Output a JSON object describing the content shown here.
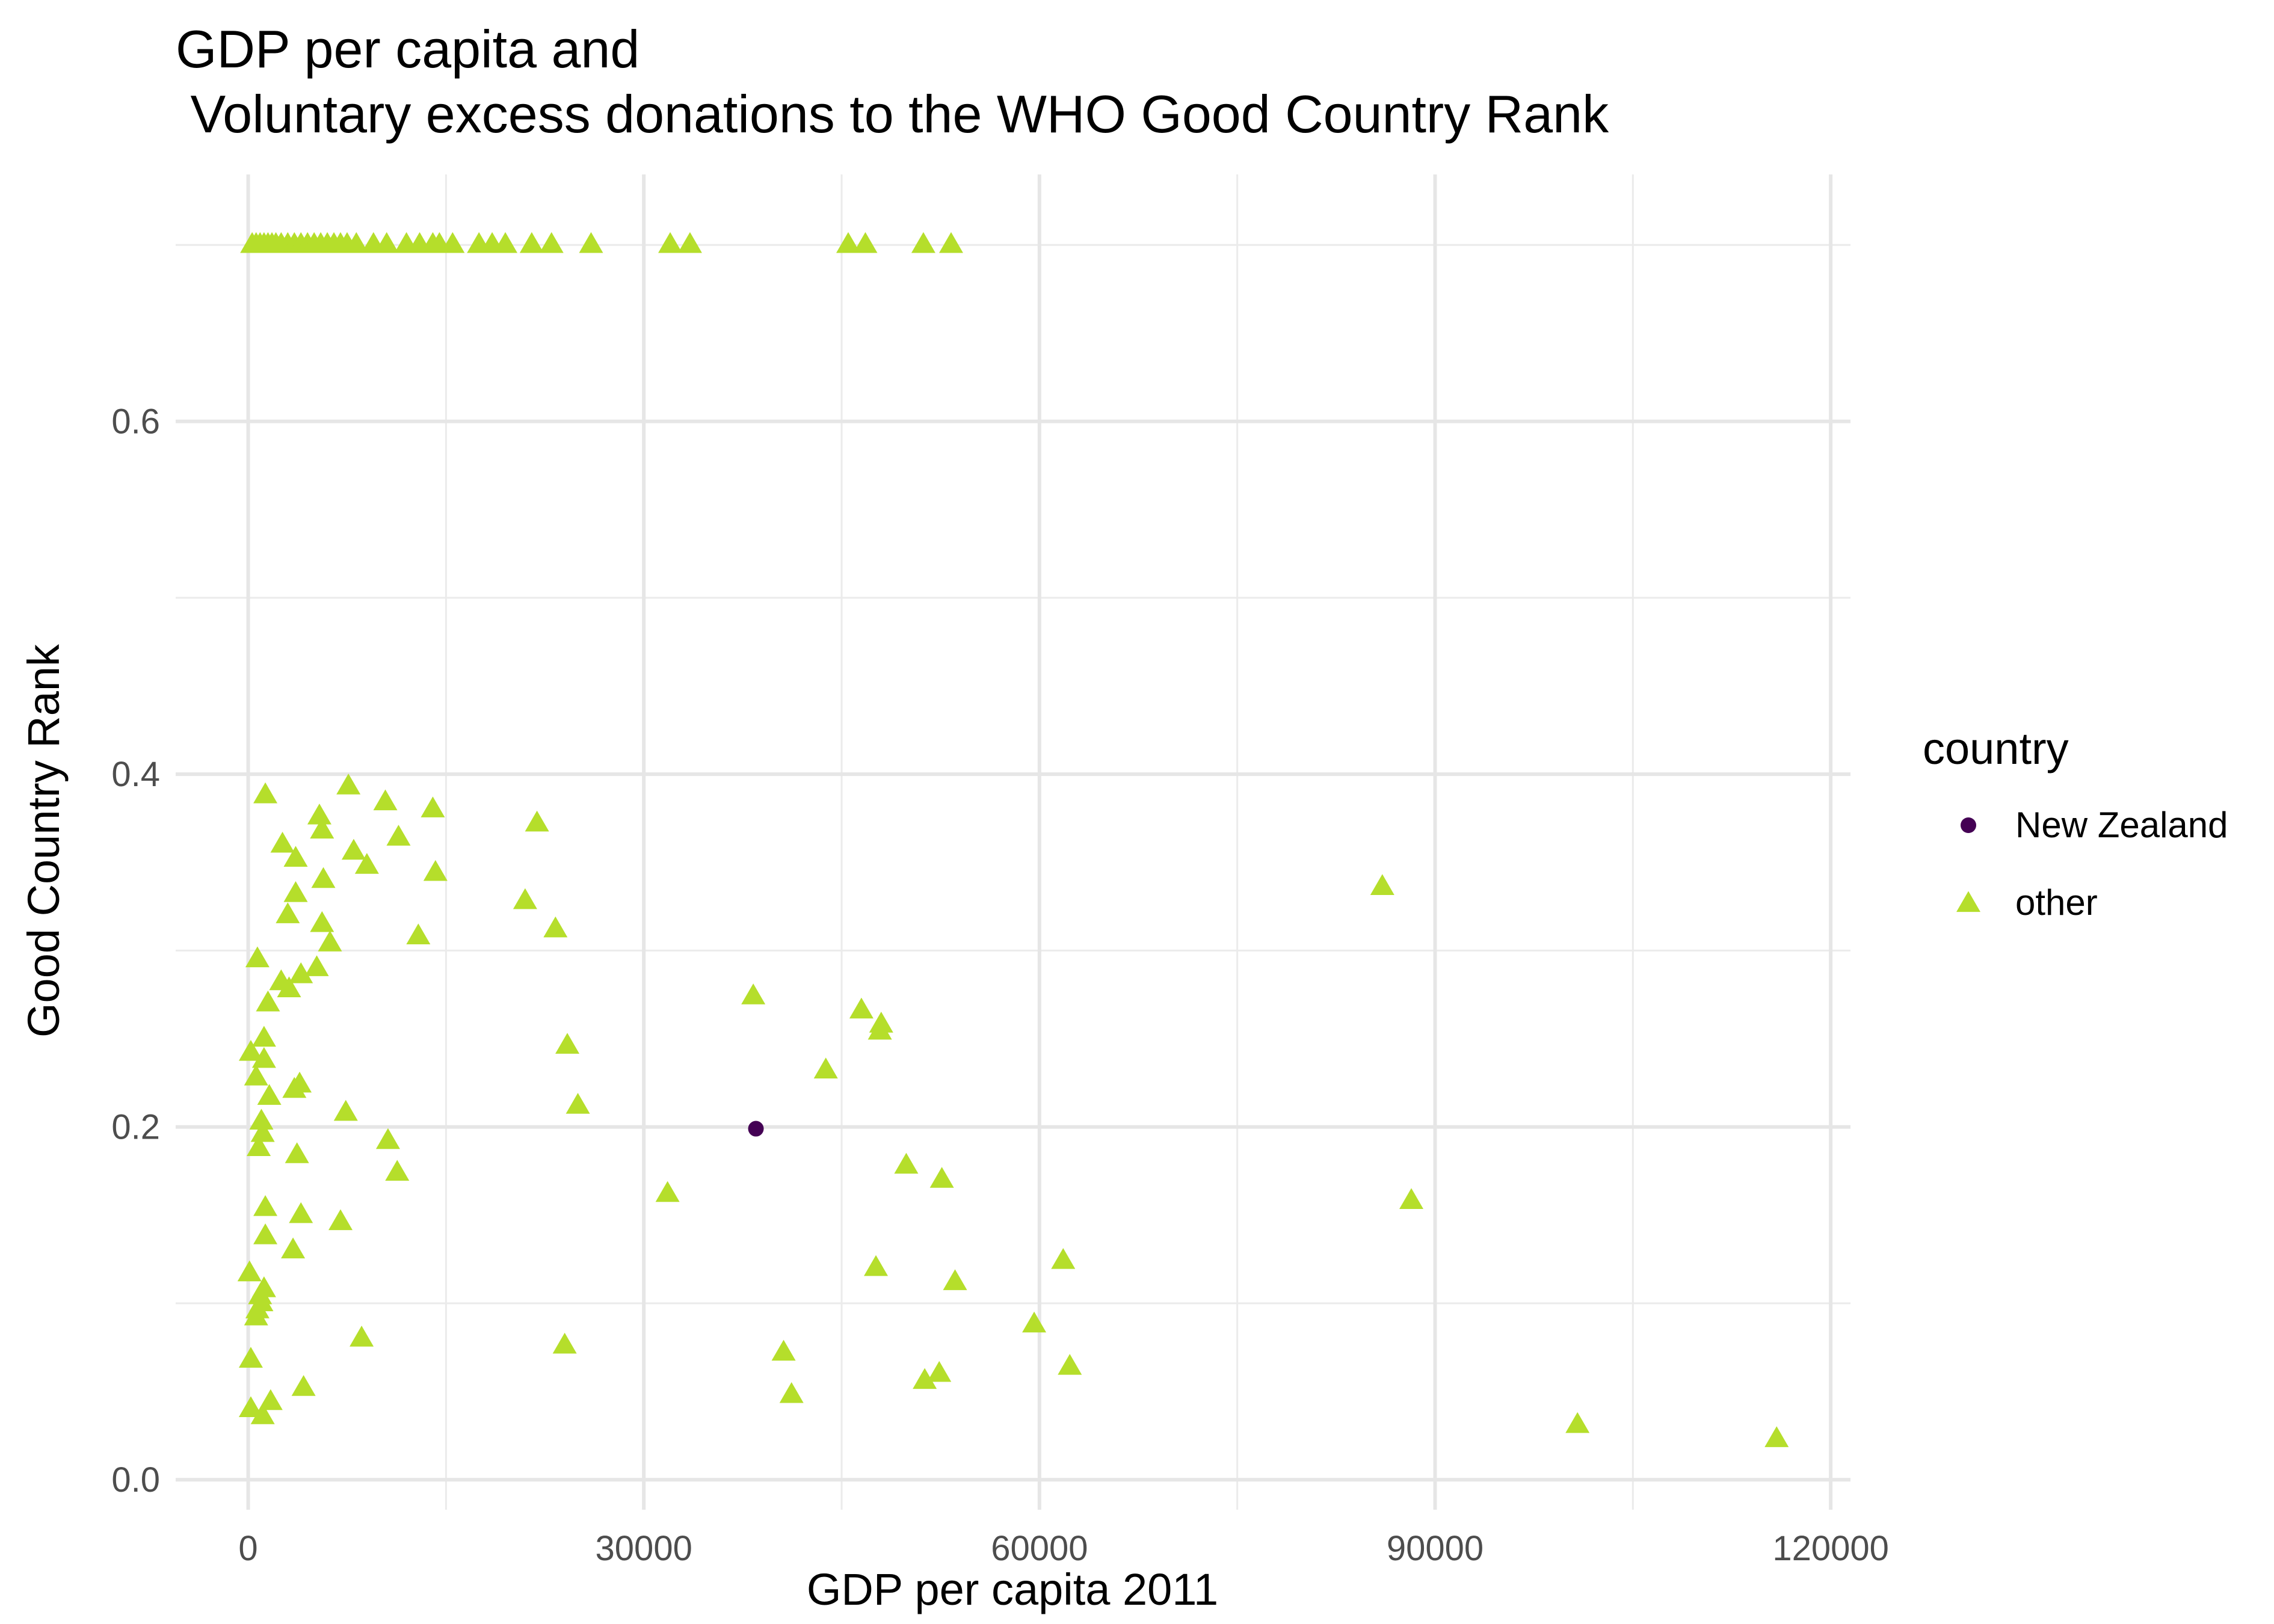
{
  "chart_data": {
    "type": "scatter",
    "title_lines": [
      "GDP per capita and",
      " Voluntary excess donations to the WHO Good Country Rank"
    ],
    "xlabel": "GDP per capita 2011",
    "ylabel": "Good Country Rank",
    "xlim": [
      -5500,
      121500
    ],
    "ylim": [
      -0.017,
      0.74
    ],
    "x_ticks": [
      0,
      30000,
      60000,
      90000,
      120000
    ],
    "y_ticks": [
      0.0,
      0.2,
      0.4,
      0.6
    ],
    "y_tick_labels": [
      "0.0",
      "0.2",
      "0.4",
      "0.6"
    ],
    "grid": true,
    "legend": {
      "title": "country",
      "position": "right",
      "entries": [
        {
          "name": "New Zealand",
          "shape": "circle",
          "color": "#440154"
        },
        {
          "name": "other",
          "shape": "triangle",
          "color": "#B5DE2B"
        }
      ]
    },
    "series": [
      {
        "name": "New Zealand",
        "points": [
          [
            38500,
            0.199
          ]
        ]
      },
      {
        "name": "other",
        "points": [
          [
            300,
            0.7
          ],
          [
            600,
            0.7
          ],
          [
            900,
            0.7
          ],
          [
            1200,
            0.7
          ],
          [
            1500,
            0.7
          ],
          [
            1800,
            0.7
          ],
          [
            2100,
            0.7
          ],
          [
            2500,
            0.7
          ],
          [
            3000,
            0.7
          ],
          [
            3500,
            0.7
          ],
          [
            4000,
            0.7
          ],
          [
            4500,
            0.7
          ],
          [
            5000,
            0.7
          ],
          [
            5500,
            0.7
          ],
          [
            6000,
            0.7
          ],
          [
            6500,
            0.7
          ],
          [
            7000,
            0.7
          ],
          [
            7500,
            0.7
          ],
          [
            8200,
            0.7
          ],
          [
            9500,
            0.7
          ],
          [
            10500,
            0.7
          ],
          [
            12000,
            0.7
          ],
          [
            13000,
            0.7
          ],
          [
            14000,
            0.7
          ],
          [
            14500,
            0.7
          ],
          [
            15500,
            0.7
          ],
          [
            17500,
            0.7
          ],
          [
            18500,
            0.7
          ],
          [
            19500,
            0.7
          ],
          [
            21500,
            0.7
          ],
          [
            23000,
            0.7
          ],
          [
            26000,
            0.7
          ],
          [
            32000,
            0.7
          ],
          [
            33500,
            0.7
          ],
          [
            45500,
            0.7
          ],
          [
            46800,
            0.7
          ],
          [
            51200,
            0.7
          ],
          [
            53300,
            0.7
          ],
          [
            1300,
            0.388
          ],
          [
            7600,
            0.393
          ],
          [
            10400,
            0.384
          ],
          [
            14000,
            0.38
          ],
          [
            21900,
            0.372
          ],
          [
            5400,
            0.376
          ],
          [
            5600,
            0.368
          ],
          [
            11400,
            0.364
          ],
          [
            2600,
            0.36
          ],
          [
            3600,
            0.352
          ],
          [
            8000,
            0.356
          ],
          [
            9000,
            0.348
          ],
          [
            14200,
            0.344
          ],
          [
            5700,
            0.34
          ],
          [
            3600,
            0.332
          ],
          [
            21000,
            0.328
          ],
          [
            3000,
            0.32
          ],
          [
            23300,
            0.312
          ],
          [
            5600,
            0.315
          ],
          [
            12900,
            0.308
          ],
          [
            6200,
            0.304
          ],
          [
            700,
            0.295
          ],
          [
            5200,
            0.29
          ],
          [
            4000,
            0.286
          ],
          [
            2500,
            0.282
          ],
          [
            3100,
            0.278
          ],
          [
            1500,
            0.27
          ],
          [
            38300,
            0.274
          ],
          [
            46500,
            0.266
          ],
          [
            48000,
            0.258
          ],
          [
            47900,
            0.254
          ],
          [
            1200,
            0.25
          ],
          [
            24200,
            0.246
          ],
          [
            200,
            0.242
          ],
          [
            1200,
            0.238
          ],
          [
            43800,
            0.232
          ],
          [
            600,
            0.228
          ],
          [
            3900,
            0.224
          ],
          [
            3500,
            0.221
          ],
          [
            1600,
            0.217
          ],
          [
            25000,
            0.212
          ],
          [
            7400,
            0.208
          ],
          [
            1000,
            0.203
          ],
          [
            1100,
            0.196
          ],
          [
            10600,
            0.192
          ],
          [
            800,
            0.188
          ],
          [
            3700,
            0.184
          ],
          [
            49900,
            0.178
          ],
          [
            11300,
            0.174
          ],
          [
            52600,
            0.17
          ],
          [
            31800,
            0.162
          ],
          [
            88200,
            0.158
          ],
          [
            1300,
            0.154
          ],
          [
            4000,
            0.15
          ],
          [
            7000,
            0.146
          ],
          [
            1300,
            0.138
          ],
          [
            3400,
            0.13
          ],
          [
            61800,
            0.124
          ],
          [
            47600,
            0.12
          ],
          [
            100,
            0.117
          ],
          [
            53600,
            0.112
          ],
          [
            1200,
            0.108
          ],
          [
            900,
            0.104
          ],
          [
            1000,
            0.1
          ],
          [
            700,
            0.096
          ],
          [
            600,
            0.092
          ],
          [
            59600,
            0.088
          ],
          [
            8600,
            0.08
          ],
          [
            24000,
            0.076
          ],
          [
            40600,
            0.072
          ],
          [
            200,
            0.068
          ],
          [
            62300,
            0.064
          ],
          [
            52400,
            0.06
          ],
          [
            51300,
            0.056
          ],
          [
            4200,
            0.052
          ],
          [
            41200,
            0.048
          ],
          [
            1700,
            0.044
          ],
          [
            200,
            0.04
          ],
          [
            1100,
            0.036
          ],
          [
            100800,
            0.031
          ],
          [
            115900,
            0.023
          ],
          [
            86000,
            0.336
          ]
        ]
      }
    ]
  }
}
